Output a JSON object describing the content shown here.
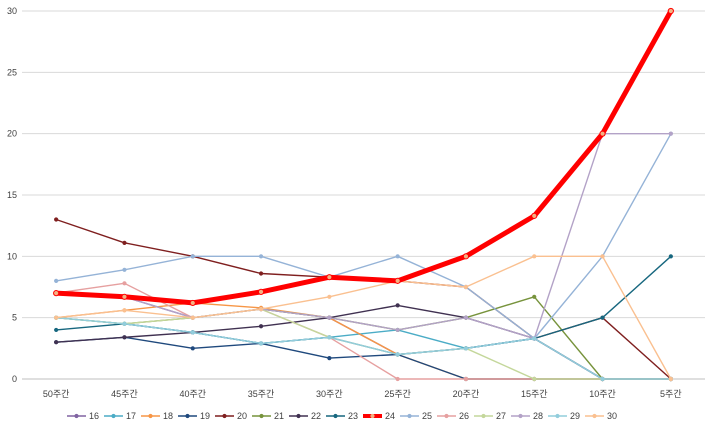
{
  "chart_data": {
    "type": "line",
    "categories": [
      "50주간",
      "45주간",
      "40주간",
      "35주간",
      "30주간",
      "25주간",
      "20주간",
      "15주간",
      "10주간",
      "5주간"
    ],
    "ylim": [
      0,
      30
    ],
    "yticks": [
      0,
      5,
      10,
      15,
      20,
      25,
      30
    ],
    "grid": true,
    "legend_position": "bottom",
    "series": [
      {
        "name": "16",
        "color": "#8064a2",
        "values": [
          7,
          6.7,
          5,
          5.7,
          5,
          2,
          2.5,
          3.3,
          0,
          0
        ]
      },
      {
        "name": "17",
        "color": "#4bacc6",
        "values": [
          5,
          4.5,
          3.8,
          2.9,
          3.4,
          4,
          2.5,
          3.3,
          0,
          0
        ]
      },
      {
        "name": "18",
        "color": "#f79646",
        "values": [
          5,
          5.6,
          6.2,
          5.8,
          5,
          2,
          0,
          0,
          0,
          0
        ]
      },
      {
        "name": "19",
        "color": "#1f497d",
        "values": [
          3,
          3.4,
          2.5,
          2.9,
          1.7,
          2,
          0,
          0,
          0,
          0
        ]
      },
      {
        "name": "20",
        "color": "#7f1f1f",
        "values": [
          13,
          11.1,
          10,
          8.6,
          8.3,
          8,
          7.5,
          3.3,
          5,
          0
        ]
      },
      {
        "name": "21",
        "color": "#77933c",
        "values": [
          5,
          4.5,
          5,
          5.7,
          5,
          4,
          5,
          6.7,
          0,
          0
        ]
      },
      {
        "name": "22",
        "color": "#403151",
        "values": [
          3,
          3.4,
          3.8,
          4.3,
          5,
          6,
          5,
          3.3,
          0,
          0
        ]
      },
      {
        "name": "23",
        "color": "#17677f",
        "values": [
          4,
          4.5,
          3.8,
          2.9,
          3.4,
          2,
          2.5,
          3.3,
          5,
          10
        ]
      },
      {
        "name": "24",
        "color": "#ff0000",
        "values": [
          7,
          6.7,
          6.2,
          7.1,
          8.3,
          8,
          10,
          13.3,
          20,
          30
        ]
      },
      {
        "name": "25",
        "color": "#95b3d7",
        "values": [
          8,
          8.9,
          10,
          10,
          8.3,
          10,
          7.5,
          3.3,
          10,
          20
        ]
      },
      {
        "name": "26",
        "color": "#e6a0a0",
        "values": [
          7,
          7.8,
          5,
          5.7,
          3.4,
          0,
          0,
          0,
          0,
          0
        ]
      },
      {
        "name": "27",
        "color": "#c4d79b",
        "values": [
          5,
          4.5,
          5,
          5.7,
          3.4,
          2,
          2.5,
          0,
          0,
          0
        ]
      },
      {
        "name": "28",
        "color": "#b3a2c7",
        "values": [
          7,
          6.7,
          5,
          5.7,
          5,
          4,
          5,
          3.3,
          20,
          20
        ]
      },
      {
        "name": "29",
        "color": "#92cddc",
        "values": [
          5,
          4.5,
          3.8,
          2.9,
          3.4,
          2,
          2.5,
          3.3,
          0,
          0
        ]
      },
      {
        "name": "30",
        "color": "#fac090",
        "values": [
          5,
          5.6,
          5,
          5.7,
          6.7,
          8,
          7.5,
          10,
          10,
          0
        ]
      }
    ]
  }
}
